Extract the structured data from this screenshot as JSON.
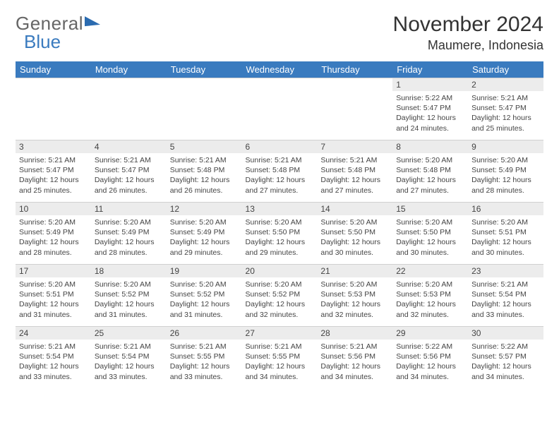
{
  "logo": {
    "part1": "General",
    "part2": "Blue"
  },
  "title": "November 2024",
  "location": "Maumere, Indonesia",
  "colors": {
    "header_bg": "#3a7bbf",
    "header_fg": "#ffffff",
    "daynum_bg": "#ececec",
    "border": "#d0d0d0",
    "text": "#444444"
  },
  "weekdays": [
    "Sunday",
    "Monday",
    "Tuesday",
    "Wednesday",
    "Thursday",
    "Friday",
    "Saturday"
  ],
  "weeks": [
    [
      null,
      null,
      null,
      null,
      null,
      {
        "n": "1",
        "sr": "5:22 AM",
        "ss": "5:47 PM",
        "dl": "12 hours and 24 minutes."
      },
      {
        "n": "2",
        "sr": "5:21 AM",
        "ss": "5:47 PM",
        "dl": "12 hours and 25 minutes."
      }
    ],
    [
      {
        "n": "3",
        "sr": "5:21 AM",
        "ss": "5:47 PM",
        "dl": "12 hours and 25 minutes."
      },
      {
        "n": "4",
        "sr": "5:21 AM",
        "ss": "5:47 PM",
        "dl": "12 hours and 26 minutes."
      },
      {
        "n": "5",
        "sr": "5:21 AM",
        "ss": "5:48 PM",
        "dl": "12 hours and 26 minutes."
      },
      {
        "n": "6",
        "sr": "5:21 AM",
        "ss": "5:48 PM",
        "dl": "12 hours and 27 minutes."
      },
      {
        "n": "7",
        "sr": "5:21 AM",
        "ss": "5:48 PM",
        "dl": "12 hours and 27 minutes."
      },
      {
        "n": "8",
        "sr": "5:20 AM",
        "ss": "5:48 PM",
        "dl": "12 hours and 27 minutes."
      },
      {
        "n": "9",
        "sr": "5:20 AM",
        "ss": "5:49 PM",
        "dl": "12 hours and 28 minutes."
      }
    ],
    [
      {
        "n": "10",
        "sr": "5:20 AM",
        "ss": "5:49 PM",
        "dl": "12 hours and 28 minutes."
      },
      {
        "n": "11",
        "sr": "5:20 AM",
        "ss": "5:49 PM",
        "dl": "12 hours and 28 minutes."
      },
      {
        "n": "12",
        "sr": "5:20 AM",
        "ss": "5:49 PM",
        "dl": "12 hours and 29 minutes."
      },
      {
        "n": "13",
        "sr": "5:20 AM",
        "ss": "5:50 PM",
        "dl": "12 hours and 29 minutes."
      },
      {
        "n": "14",
        "sr": "5:20 AM",
        "ss": "5:50 PM",
        "dl": "12 hours and 30 minutes."
      },
      {
        "n": "15",
        "sr": "5:20 AM",
        "ss": "5:50 PM",
        "dl": "12 hours and 30 minutes."
      },
      {
        "n": "16",
        "sr": "5:20 AM",
        "ss": "5:51 PM",
        "dl": "12 hours and 30 minutes."
      }
    ],
    [
      {
        "n": "17",
        "sr": "5:20 AM",
        "ss": "5:51 PM",
        "dl": "12 hours and 31 minutes."
      },
      {
        "n": "18",
        "sr": "5:20 AM",
        "ss": "5:52 PM",
        "dl": "12 hours and 31 minutes."
      },
      {
        "n": "19",
        "sr": "5:20 AM",
        "ss": "5:52 PM",
        "dl": "12 hours and 31 minutes."
      },
      {
        "n": "20",
        "sr": "5:20 AM",
        "ss": "5:52 PM",
        "dl": "12 hours and 32 minutes."
      },
      {
        "n": "21",
        "sr": "5:20 AM",
        "ss": "5:53 PM",
        "dl": "12 hours and 32 minutes."
      },
      {
        "n": "22",
        "sr": "5:20 AM",
        "ss": "5:53 PM",
        "dl": "12 hours and 32 minutes."
      },
      {
        "n": "23",
        "sr": "5:21 AM",
        "ss": "5:54 PM",
        "dl": "12 hours and 33 minutes."
      }
    ],
    [
      {
        "n": "24",
        "sr": "5:21 AM",
        "ss": "5:54 PM",
        "dl": "12 hours and 33 minutes."
      },
      {
        "n": "25",
        "sr": "5:21 AM",
        "ss": "5:54 PM",
        "dl": "12 hours and 33 minutes."
      },
      {
        "n": "26",
        "sr": "5:21 AM",
        "ss": "5:55 PM",
        "dl": "12 hours and 33 minutes."
      },
      {
        "n": "27",
        "sr": "5:21 AM",
        "ss": "5:55 PM",
        "dl": "12 hours and 34 minutes."
      },
      {
        "n": "28",
        "sr": "5:21 AM",
        "ss": "5:56 PM",
        "dl": "12 hours and 34 minutes."
      },
      {
        "n": "29",
        "sr": "5:22 AM",
        "ss": "5:56 PM",
        "dl": "12 hours and 34 minutes."
      },
      {
        "n": "30",
        "sr": "5:22 AM",
        "ss": "5:57 PM",
        "dl": "12 hours and 34 minutes."
      }
    ]
  ],
  "labels": {
    "sunrise": "Sunrise: ",
    "sunset": "Sunset: ",
    "daylight": "Daylight: "
  }
}
